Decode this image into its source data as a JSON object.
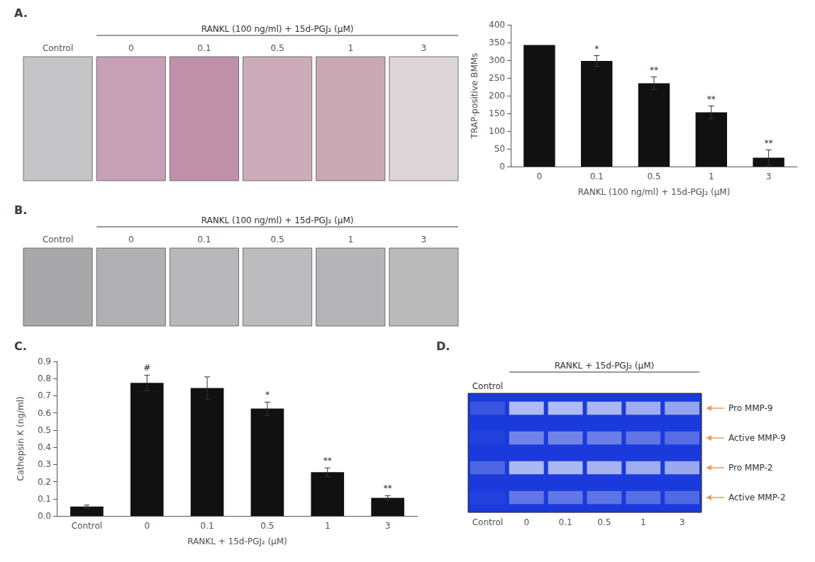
{
  "chart_data": [
    {
      "type": "images",
      "title": "A.",
      "subtitle": "RANKL (100 ng/ml) + 15d-PGJ₂ (μM)",
      "categories": [
        "Control",
        "0",
        "0.1",
        "0.5",
        "1",
        "3"
      ],
      "colors": [
        "#c5c5c8",
        "#c8a0b5",
        "#c090a8",
        "#cbacb8",
        "#c8a8b2",
        "#ddd5d8"
      ]
    },
    {
      "type": "bar",
      "categories": [
        "0",
        "0.1",
        "0.5",
        "1",
        "3"
      ],
      "values": [
        343,
        298,
        235,
        153,
        25
      ],
      "errors": [
        0,
        15,
        18,
        18,
        22
      ],
      "color": "#111111",
      "ylabel": "TRAP-positive BMMs",
      "xlabel": "RANKL (100 ng/ml) + 15d-PGJ₂ (μM)",
      "ylim": [
        0,
        400
      ],
      "yticks": [
        0,
        50,
        100,
        150,
        200,
        250,
        300,
        350,
        400
      ],
      "annotations": [
        null,
        "*",
        "**",
        "**",
        "**"
      ]
    },
    {
      "type": "images",
      "title": "B.",
      "subtitle": "RANKL (100 ng/ml) + 15d-PGJ₂ (μM)",
      "categories": [
        "Control",
        "0",
        "0.1",
        "0.5",
        "1",
        "3"
      ],
      "colors": [
        "#a8a8aa",
        "#b0b0b2",
        "#b8b8ba",
        "#bcbcbe",
        "#b5b5b7",
        "#bababb"
      ]
    },
    {
      "type": "bar",
      "title": "C.",
      "categories": [
        "Control",
        "0",
        "0.1",
        "0.5",
        "1",
        "3"
      ],
      "values": [
        0.055,
        0.775,
        0.745,
        0.625,
        0.255,
        0.105
      ],
      "errors": [
        0.008,
        0.045,
        0.065,
        0.038,
        0.025,
        0.013
      ],
      "color": "#111111",
      "ylabel": "Cathepsin K (ng/ml)",
      "xlabel": "RANKL + 15d-PGJ₂ (μM)",
      "ylim": [
        0,
        0.9
      ],
      "yticks": [
        {
          "value": 0,
          "label": "0.0"
        },
        0.1,
        0.2,
        0.3,
        0.4,
        0.5,
        0.6,
        0.7,
        0.8,
        0.9
      ],
      "annotations": [
        null,
        "#",
        null,
        "*",
        "**",
        "**"
      ]
    },
    {
      "type": "gel",
      "title": "D.",
      "subtitle": "RANKL + 15d-PGJ₂ (μM)",
      "annotations": [
        "Control"
      ],
      "categories": [
        "Control",
        "0",
        "0.1",
        "0.5",
        "1",
        "3"
      ],
      "color": "#1a3adb",
      "series": [
        {
          "name": "Pro MMP-9",
          "color": "#e8a060",
          "values": [
            0.18,
            0.88,
            0.88,
            0.84,
            0.78,
            0.72
          ]
        },
        {
          "name": "Active MMP-9",
          "color": "#e8a060",
          "values": [
            0.05,
            0.5,
            0.5,
            0.46,
            0.4,
            0.35
          ]
        },
        {
          "name": "Pro MMP-2",
          "color": "#e8a060",
          "values": [
            0.3,
            0.85,
            0.85,
            0.82,
            0.78,
            0.75
          ]
        },
        {
          "name": "Active MMP-2",
          "color": "#e8a060",
          "values": [
            0.05,
            0.42,
            0.42,
            0.39,
            0.36,
            0.32
          ]
        }
      ]
    }
  ]
}
